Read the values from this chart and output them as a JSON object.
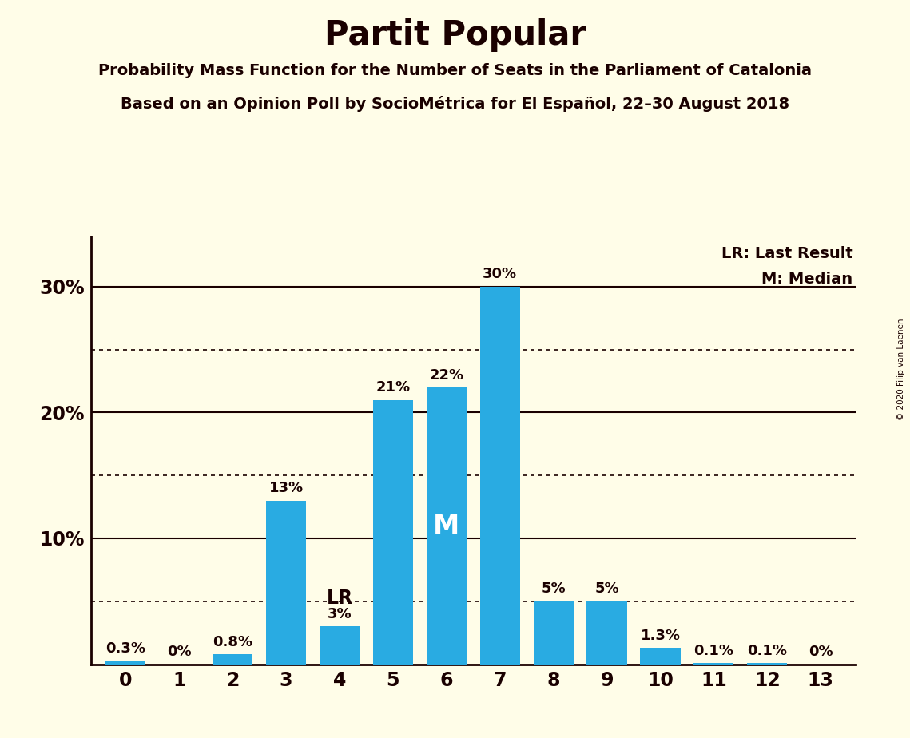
{
  "title": "Partit Popular",
  "subtitle1": "Probability Mass Function for the Number of Seats in the Parliament of Catalonia",
  "subtitle2": "Based on an Opinion Poll by SocioMétrica for El Español, 22–30 August 2018",
  "copyright": "© 2020 Filip van Laenen",
  "categories": [
    0,
    1,
    2,
    3,
    4,
    5,
    6,
    7,
    8,
    9,
    10,
    11,
    12,
    13
  ],
  "values": [
    0.3,
    0.0,
    0.8,
    13.0,
    3.0,
    21.0,
    22.0,
    30.0,
    5.0,
    5.0,
    1.3,
    0.1,
    0.1,
    0.0
  ],
  "labels": [
    "0.3%",
    "0%",
    "0.8%",
    "13%",
    "3%",
    "21%",
    "22%",
    "30%",
    "5%",
    "5%",
    "1.3%",
    "0.1%",
    "0.1%",
    "0%"
  ],
  "bar_color": "#29ABE2",
  "background_color": "#FFFDE8",
  "text_color": "#1A0000",
  "yticks": [
    10,
    20,
    30
  ],
  "ytick_labels": [
    "10%",
    "20%",
    "30%"
  ],
  "ylim": [
    0,
    34
  ],
  "lr_seat": 4,
  "median_seat": 6,
  "lr_label": "LR",
  "median_label": "M",
  "legend_lr": "LR: Last Result",
  "legend_m": "M: Median",
  "dotted_grid_values": [
    5,
    15,
    25
  ],
  "solid_grid_values": [
    10,
    20,
    30
  ]
}
